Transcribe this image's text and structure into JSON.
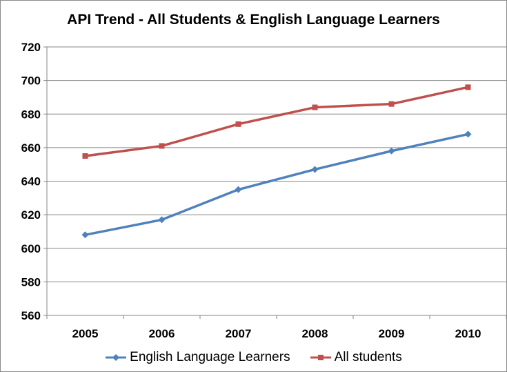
{
  "chart_data": {
    "type": "line",
    "title": "API Trend - All Students & English Language Learners",
    "categories": [
      "2005",
      "2006",
      "2007",
      "2008",
      "2009",
      "2010"
    ],
    "ylim": [
      560,
      720
    ],
    "yticks": [
      560,
      580,
      600,
      620,
      640,
      660,
      680,
      700,
      720
    ],
    "grid": true,
    "legend_position": "bottom",
    "series": [
      {
        "name": "English Language Learners",
        "color": "#4f81bd",
        "marker": "diamond",
        "values": [
          608,
          617,
          635,
          647,
          658,
          668
        ]
      },
      {
        "name": "All students",
        "color": "#c0504d",
        "marker": "square",
        "values": [
          655,
          661,
          674,
          684,
          686,
          696
        ]
      }
    ]
  }
}
